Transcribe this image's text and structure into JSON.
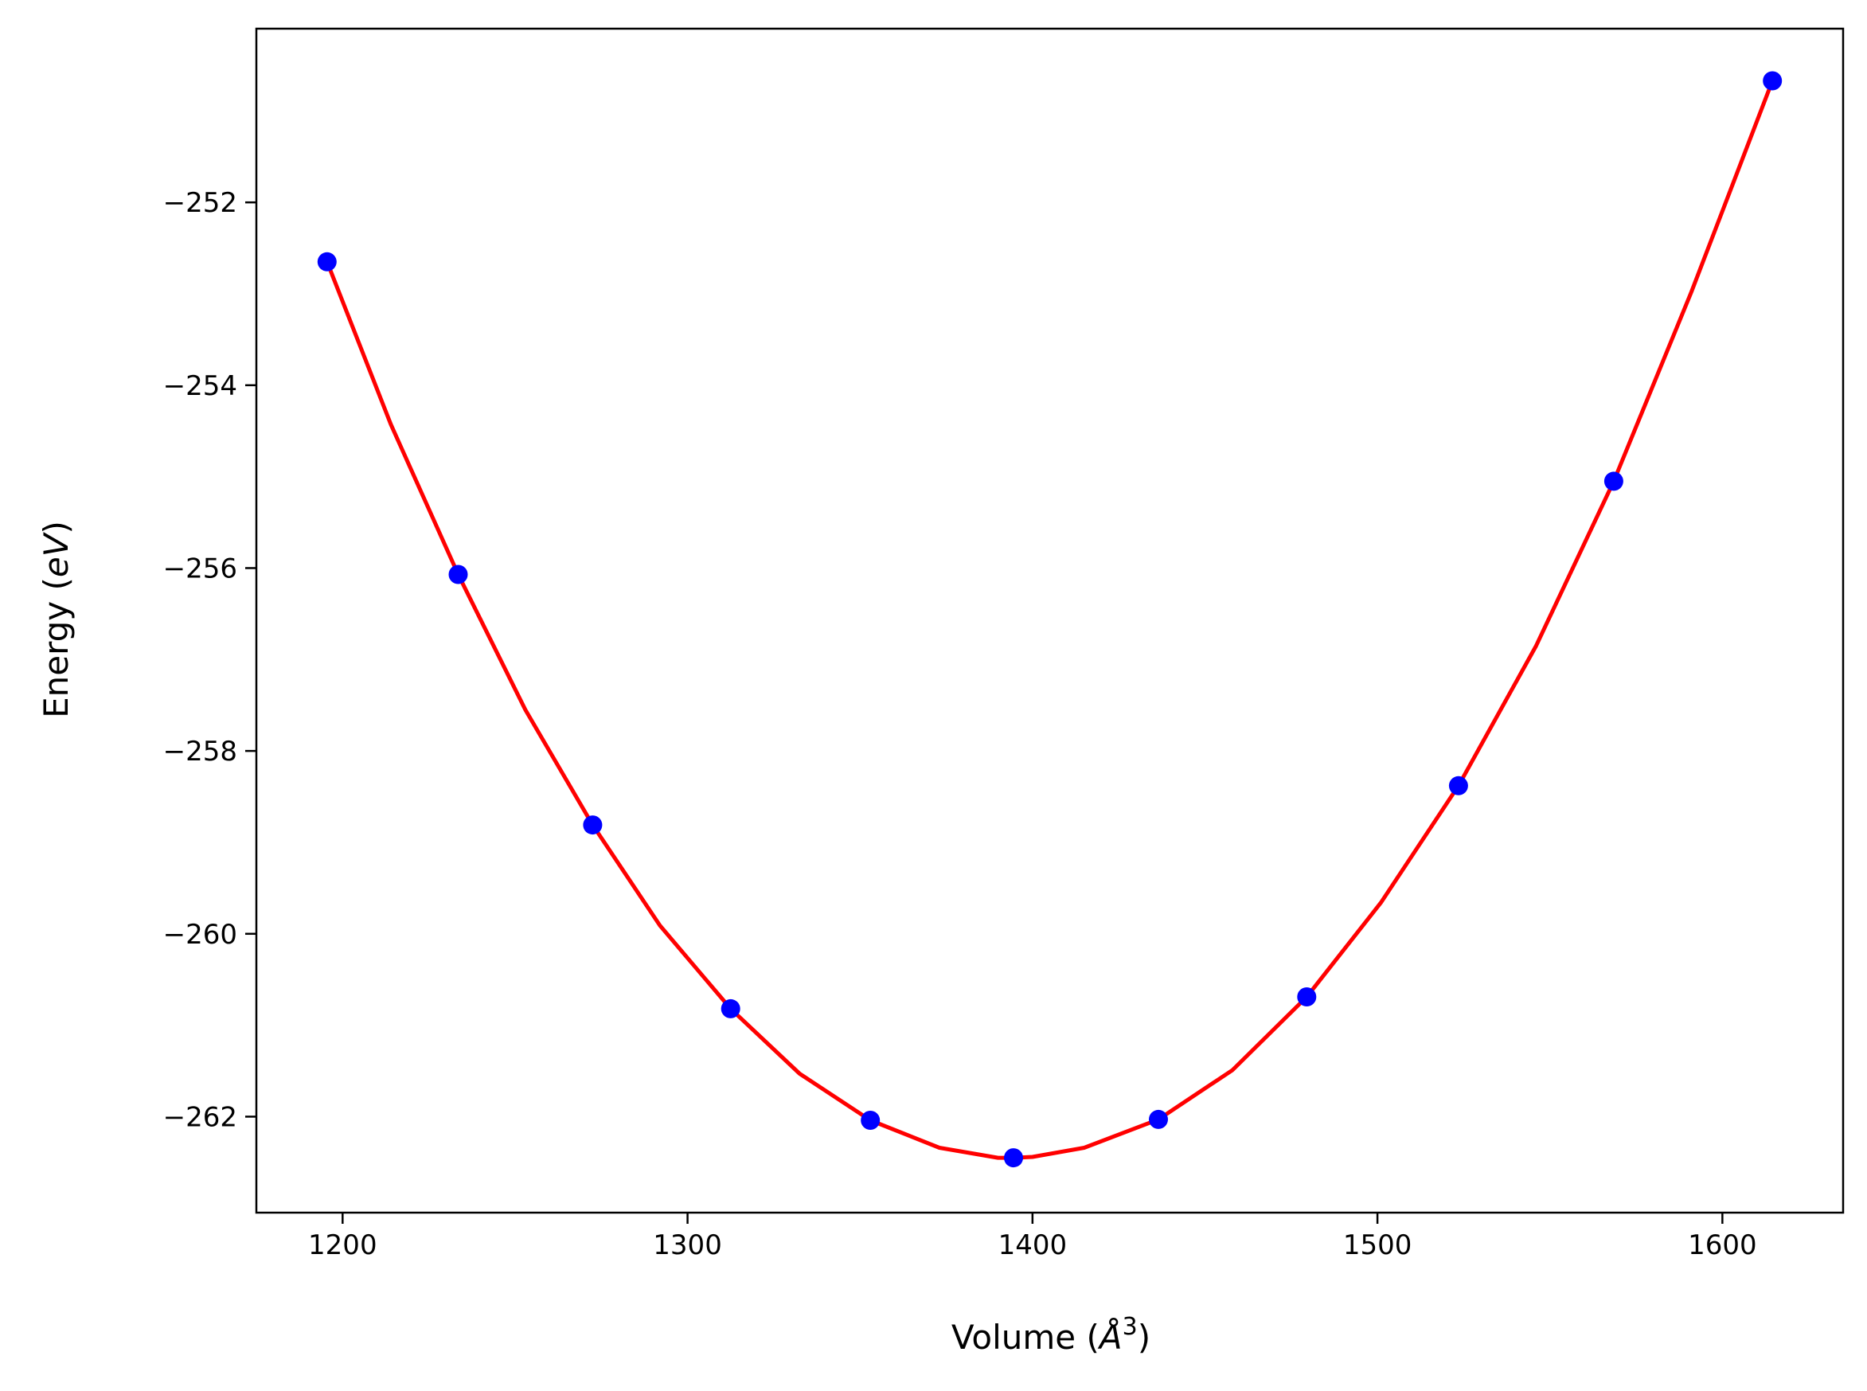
{
  "chart_data": {
    "type": "scatter",
    "title": "",
    "xlabel_main": "Volume (",
    "xlabel_unit": "Å",
    "xlabel_sup": "3",
    "xlabel_close": ")",
    "ylabel_main": "Energy (",
    "ylabel_unit": "eV",
    "ylabel_close": ")",
    "xlim": [
      1175,
      1635
    ],
    "ylim": [
      -263.05,
      -250.1
    ],
    "xticks": [
      1200,
      1300,
      1400,
      1500,
      1600
    ],
    "xtick_labels": [
      "1200",
      "1300",
      "1400",
      "1500",
      "1600"
    ],
    "yticks": [
      -252,
      -254,
      -256,
      -258,
      -260,
      -262
    ],
    "ytick_labels": [
      "−252",
      "−254",
      "−256",
      "−258",
      "−260",
      "−262"
    ],
    "grid": false,
    "series": [
      {
        "kind": "points",
        "color": "#0000ff",
        "x": [
          1195.5,
          1233.5,
          1272.5,
          1312.5,
          1353,
          1394.5,
          1436.5,
          1479.5,
          1523.5,
          1568.5,
          1614.5
        ],
        "y": [
          -252.65,
          -256.07,
          -258.81,
          -260.82,
          -262.04,
          -262.45,
          -262.03,
          -260.69,
          -258.38,
          -255.05,
          -250.67
        ]
      },
      {
        "kind": "fit",
        "color": "#ff0000",
        "x": [
          1195.5,
          1214,
          1233.5,
          1253,
          1272.5,
          1292,
          1312.5,
          1332.5,
          1353,
          1373,
          1390,
          1394.5,
          1400,
          1415,
          1436.5,
          1458,
          1479.5,
          1501,
          1523.5,
          1546,
          1568.5,
          1591,
          1614.5
        ],
        "y": [
          -252.65,
          -254.43,
          -256.07,
          -257.55,
          -258.81,
          -259.91,
          -260.82,
          -261.53,
          -262.04,
          -262.34,
          -262.45,
          -262.45,
          -262.44,
          -262.34,
          -262.03,
          -261.49,
          -260.69,
          -259.66,
          -258.38,
          -256.85,
          -255.05,
          -252.98,
          -250.67
        ]
      }
    ]
  }
}
